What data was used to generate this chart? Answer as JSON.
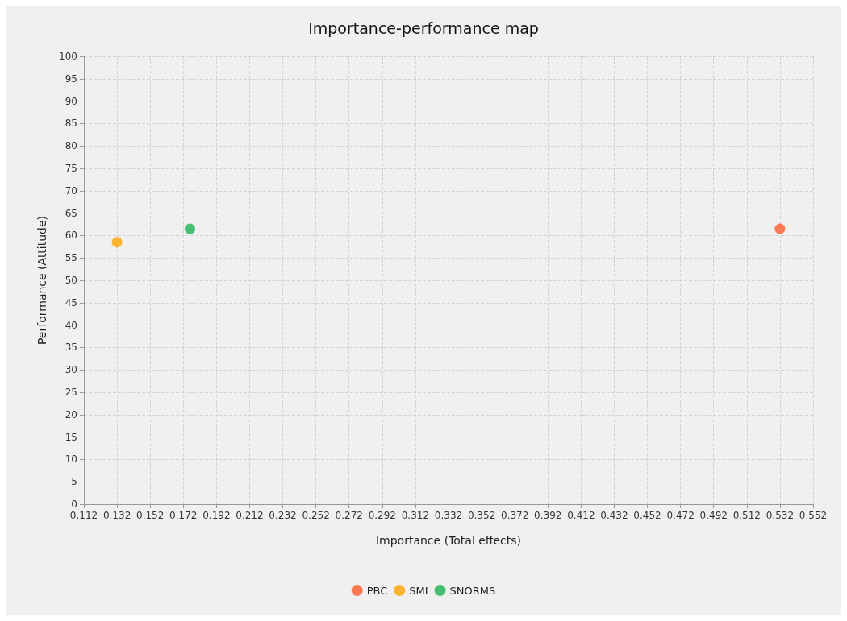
{
  "chart_data": {
    "type": "scatter",
    "title": "Importance-performance map",
    "xlabel": "Importance (Total effects)",
    "ylabel": "Performance (Attitude)",
    "series": [
      {
        "name": "PBC",
        "color": "#ff5a2c",
        "x": [
          0.532
        ],
        "values": [
          61.5
        ]
      },
      {
        "name": "SMI",
        "color": "#ffa500",
        "x": [
          0.132
        ],
        "values": [
          58.5
        ]
      },
      {
        "name": "SNORMS",
        "color": "#1cb350",
        "x": [
          0.176
        ],
        "values": [
          61.5
        ]
      }
    ],
    "xlim": [
      0.112,
      0.552
    ],
    "xticks": [
      0.112,
      0.132,
      0.152,
      0.172,
      0.192,
      0.212,
      0.232,
      0.252,
      0.272,
      0.292,
      0.312,
      0.332,
      0.352,
      0.372,
      0.392,
      0.412,
      0.432,
      0.452,
      0.472,
      0.492,
      0.512,
      0.532,
      0.552
    ],
    "ylim": [
      0,
      100
    ],
    "yticks": [
      0,
      5,
      10,
      15,
      20,
      25,
      30,
      35,
      40,
      45,
      50,
      55,
      60,
      65,
      70,
      75,
      80,
      85,
      90,
      95,
      100
    ],
    "grid": true,
    "legend": "bottom",
    "marker": "circle"
  }
}
